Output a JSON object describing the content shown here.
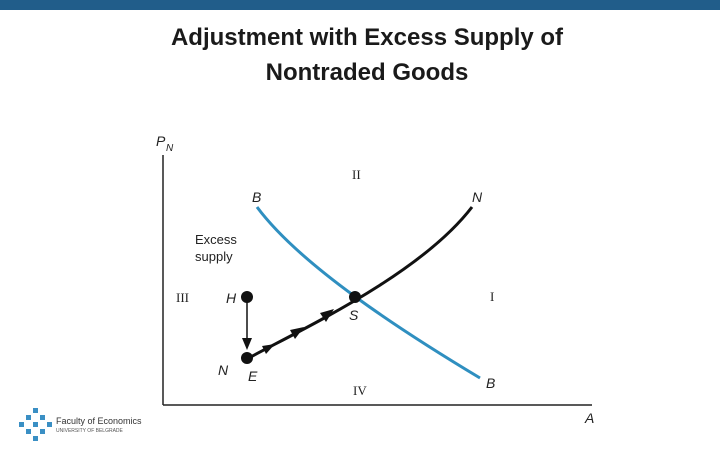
{
  "header": {
    "title_lines": [
      "Adjustment with Excess Supply of",
      "Nontraded Goods"
    ]
  },
  "diagram": {
    "y_axis": {
      "label": "P",
      "subscript": "N"
    },
    "x_axis": {
      "label": "A"
    },
    "curves": [
      {
        "name": "BB",
        "top_label": "B",
        "bottom_label": "B"
      },
      {
        "name": "NN",
        "top_label": "N",
        "bottom_label": "N"
      }
    ],
    "regions": [
      "II",
      "I",
      "III",
      "IV"
    ],
    "annotation_lines": [
      "Excess",
      "supply"
    ],
    "points": [
      "H",
      "S",
      "E"
    ]
  },
  "logo": {
    "name": "Faculty of Economics",
    "subtitle": "UNIVERSITY OF BELGRADE"
  }
}
